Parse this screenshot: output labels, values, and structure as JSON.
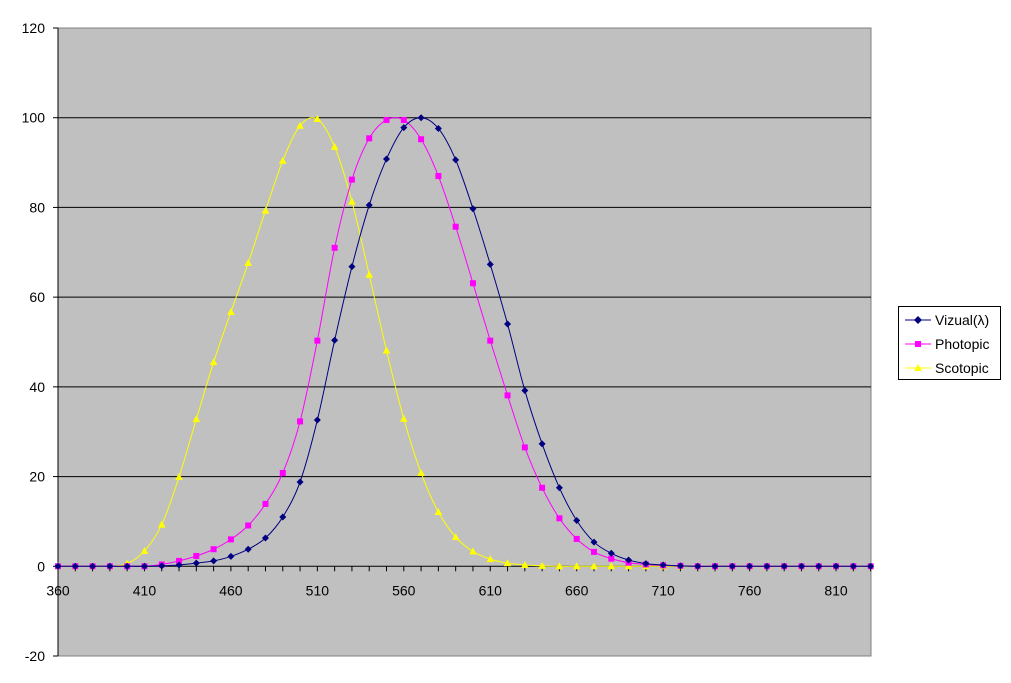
{
  "chart_data": {
    "type": "line",
    "title": "",
    "xlabel": "",
    "ylabel": "",
    "xlim": [
      360,
      830
    ],
    "ylim": [
      -20,
      120
    ],
    "y_ticks": [
      -20,
      0,
      20,
      40,
      60,
      80,
      100,
      120
    ],
    "x_tick_labels": [
      "360",
      "410",
      "460",
      "510",
      "560",
      "610",
      "660",
      "710",
      "760",
      "810"
    ],
    "grid": "horizontal",
    "plot_background": "#C0C0C0",
    "legend_position": "right",
    "x": [
      360,
      370,
      380,
      390,
      400,
      410,
      420,
      430,
      440,
      450,
      460,
      470,
      480,
      490,
      500,
      510,
      520,
      530,
      540,
      550,
      560,
      570,
      580,
      590,
      600,
      610,
      620,
      630,
      640,
      650,
      660,
      670,
      680,
      690,
      700,
      710,
      720,
      730,
      740,
      750,
      760,
      770,
      780,
      790,
      800,
      810,
      820,
      830
    ],
    "series": [
      {
        "name": "Vizual(λ)",
        "color": "#000080",
        "marker": "diamond",
        "values": [
          0,
          0,
          0,
          0,
          0,
          0,
          0.1,
          0.3,
          0.7,
          1.2,
          2.2,
          3.8,
          6.3,
          11,
          18.8,
          32.6,
          50.4,
          66.8,
          80.5,
          90.8,
          97.8,
          100,
          97.6,
          90.6,
          79.7,
          67.3,
          54,
          39.2,
          27.3,
          17.5,
          10.2,
          5.4,
          2.9,
          1.4,
          0.6,
          0.3,
          0.1,
          0,
          0,
          0,
          0,
          0,
          0,
          0,
          0,
          0,
          0,
          0
        ]
      },
      {
        "name": "Photopic",
        "color": "#FF00FF",
        "marker": "square",
        "values": [
          0,
          0,
          0,
          0,
          0,
          0,
          0.4,
          1.2,
          2.3,
          3.8,
          6,
          9.1,
          13.9,
          20.8,
          32.3,
          50.3,
          71,
          86.2,
          95.4,
          99.5,
          99.5,
          95.2,
          87,
          75.7,
          63.1,
          50.3,
          38.1,
          26.5,
          17.5,
          10.7,
          6.1,
          3.2,
          1.7,
          0.8,
          0.4,
          0.2,
          0.1,
          0,
          0,
          0,
          0,
          0,
          0,
          0,
          0,
          0,
          0,
          0
        ]
      },
      {
        "name": "Scotopic",
        "color": "#FFFF00",
        "marker": "triangle",
        "values": [
          0,
          0,
          0,
          0,
          0.6,
          3.4,
          9.3,
          19.9,
          32.8,
          45.5,
          56.7,
          67.6,
          79.3,
          90.4,
          98.2,
          99.7,
          93.5,
          81.3,
          65,
          48.1,
          32.9,
          20.8,
          12.1,
          6.5,
          3.3,
          1.6,
          0.7,
          0.3,
          0.1,
          0,
          0,
          0,
          0,
          0,
          0,
          0,
          0,
          0,
          0,
          0,
          0,
          0,
          0,
          0,
          0,
          0,
          0,
          0
        ]
      }
    ]
  }
}
